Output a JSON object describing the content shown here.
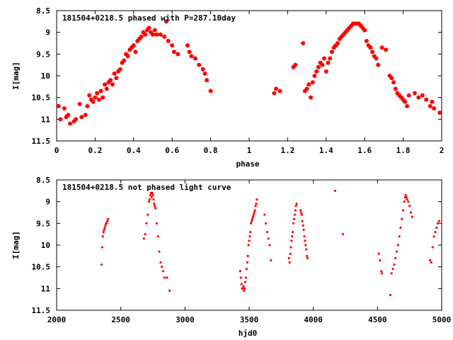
{
  "chart_data": [
    {
      "type": "scatter",
      "title": "181504+0218.5 phased with P=287.10day",
      "xlabel": "phase",
      "ylabel": "I[mag]",
      "xlim": [
        0,
        2
      ],
      "ylim": [
        11.5,
        8.5
      ],
      "y_inverted": true,
      "xticks": [
        "0",
        "0.2",
        "0.4",
        "0.6",
        "0.8",
        "1",
        "1.2",
        "1.4",
        "1.6",
        "1.8",
        "2"
      ],
      "yticks": [
        "8.5",
        "9",
        "9.5",
        "10",
        "10.5",
        "11",
        "11.5"
      ],
      "marker_color": "#ff0000",
      "series": [
        {
          "points": [
            [
              0.01,
              10.7
            ],
            [
              0.02,
              11.0
            ],
            [
              0.04,
              10.75
            ],
            [
              0.05,
              10.95
            ],
            [
              0.06,
              10.9
            ],
            [
              0.07,
              11.1
            ],
            [
              0.09,
              11.05
            ],
            [
              0.1,
              11.0
            ],
            [
              0.12,
              10.65
            ],
            [
              0.13,
              10.95
            ],
            [
              0.15,
              10.9
            ],
            [
              0.16,
              10.7
            ],
            [
              0.17,
              10.45
            ],
            [
              0.18,
              10.55
            ],
            [
              0.19,
              10.6
            ],
            [
              0.2,
              10.5
            ],
            [
              0.21,
              10.4
            ],
            [
              0.22,
              10.55
            ],
            [
              0.23,
              10.35
            ],
            [
              0.24,
              10.5
            ],
            [
              0.25,
              10.2
            ],
            [
              0.26,
              10.3
            ],
            [
              0.27,
              10.15
            ],
            [
              0.28,
              10.1
            ],
            [
              0.29,
              10.2
            ],
            [
              0.3,
              9.95
            ],
            [
              0.31,
              10.05
            ],
            [
              0.32,
              9.9
            ],
            [
              0.33,
              9.85
            ],
            [
              0.34,
              9.7
            ],
            [
              0.35,
              9.65
            ],
            [
              0.36,
              9.5
            ],
            [
              0.37,
              9.55
            ],
            [
              0.38,
              9.4
            ],
            [
              0.39,
              9.35
            ],
            [
              0.4,
              9.3
            ],
            [
              0.41,
              9.45
            ],
            [
              0.42,
              9.2
            ],
            [
              0.43,
              9.15
            ],
            [
              0.44,
              9.1
            ],
            [
              0.45,
              9.0
            ],
            [
              0.46,
              9.05
            ],
            [
              0.47,
              8.95
            ],
            [
              0.48,
              8.9
            ],
            [
              0.49,
              9.0
            ],
            [
              0.5,
              9.05
            ],
            [
              0.51,
              8.95
            ],
            [
              0.52,
              9.05
            ],
            [
              0.54,
              9.05
            ],
            [
              0.56,
              9.1
            ],
            [
              0.57,
              8.75
            ],
            [
              0.58,
              9.2
            ],
            [
              0.6,
              9.3
            ],
            [
              0.61,
              9.45
            ],
            [
              0.63,
              9.5
            ],
            [
              0.68,
              9.3
            ],
            [
              0.69,
              9.45
            ],
            [
              0.7,
              9.55
            ],
            [
              0.72,
              9.6
            ],
            [
              0.74,
              9.75
            ],
            [
              0.76,
              9.85
            ],
            [
              0.77,
              9.95
            ],
            [
              0.78,
              10.1
            ],
            [
              0.8,
              10.35
            ],
            [
              1.13,
              10.4
            ],
            [
              1.14,
              10.3
            ],
            [
              1.16,
              10.35
            ],
            [
              1.23,
              9.8
            ],
            [
              1.24,
              9.75
            ],
            [
              1.28,
              9.25
            ],
            [
              1.29,
              10.35
            ],
            [
              1.3,
              10.3
            ],
            [
              1.31,
              10.2
            ],
            [
              1.32,
              10.5
            ],
            [
              1.33,
              10.15
            ],
            [
              1.34,
              10.0
            ],
            [
              1.35,
              9.9
            ],
            [
              1.36,
              9.8
            ],
            [
              1.37,
              9.7
            ],
            [
              1.38,
              9.75
            ],
            [
              1.39,
              9.6
            ],
            [
              1.4,
              9.9
            ],
            [
              1.41,
              9.7
            ],
            [
              1.42,
              9.6
            ],
            [
              1.43,
              9.45
            ],
            [
              1.44,
              9.35
            ],
            [
              1.45,
              9.3
            ],
            [
              1.46,
              9.25
            ],
            [
              1.47,
              9.15
            ],
            [
              1.48,
              9.1
            ],
            [
              1.49,
              9.05
            ],
            [
              1.5,
              9.0
            ],
            [
              1.51,
              8.95
            ],
            [
              1.52,
              8.9
            ],
            [
              1.53,
              8.85
            ],
            [
              1.54,
              8.8
            ],
            [
              1.55,
              8.8
            ],
            [
              1.56,
              8.8
            ],
            [
              1.57,
              8.8
            ],
            [
              1.58,
              8.85
            ],
            [
              1.59,
              8.9
            ],
            [
              1.6,
              8.95
            ],
            [
              1.61,
              9.2
            ],
            [
              1.62,
              9.3
            ],
            [
              1.63,
              9.35
            ],
            [
              1.64,
              9.45
            ],
            [
              1.65,
              9.55
            ],
            [
              1.66,
              9.6
            ],
            [
              1.67,
              9.75
            ],
            [
              1.69,
              9.35
            ],
            [
              1.71,
              9.4
            ],
            [
              1.73,
              10.0
            ],
            [
              1.74,
              10.05
            ],
            [
              1.75,
              10.15
            ],
            [
              1.76,
              10.3
            ],
            [
              1.77,
              10.4
            ],
            [
              1.78,
              10.45
            ],
            [
              1.79,
              10.5
            ],
            [
              1.8,
              10.55
            ],
            [
              1.81,
              10.6
            ],
            [
              1.82,
              10.7
            ],
            [
              1.83,
              10.45
            ],
            [
              1.86,
              10.4
            ],
            [
              1.88,
              10.5
            ],
            [
              1.9,
              10.45
            ],
            [
              1.92,
              10.55
            ],
            [
              1.94,
              10.7
            ],
            [
              1.95,
              10.6
            ],
            [
              1.96,
              10.75
            ],
            [
              1.99,
              10.85
            ]
          ]
        }
      ]
    },
    {
      "type": "scatter",
      "title": "181504+0218.5 not phased light curve",
      "xlabel": "hjd0",
      "ylabel": "I[mag]",
      "xlim": [
        2000,
        5000
      ],
      "ylim": [
        11.5,
        8.5
      ],
      "y_inverted": true,
      "xticks": [
        "2000",
        "2500",
        "3000",
        "3500",
        "4000",
        "4500",
        "5000"
      ],
      "yticks": [
        "8.5",
        "9",
        "9.5",
        "10",
        "10.5",
        "11",
        "11.5"
      ],
      "marker_color": "#ff0000",
      "series": [
        {
          "points": [
            [
              2350,
              10.45
            ],
            [
              2355,
              10.05
            ],
            [
              2360,
              9.8
            ],
            [
              2365,
              9.7
            ],
            [
              2370,
              9.65
            ],
            [
              2375,
              9.6
            ],
            [
              2380,
              9.55
            ],
            [
              2385,
              9.5
            ],
            [
              2390,
              9.5
            ],
            [
              2395,
              9.45
            ],
            [
              2400,
              9.4
            ],
            [
              2680,
              9.85
            ],
            [
              2690,
              9.75
            ],
            [
              2700,
              9.5
            ],
            [
              2710,
              9.3
            ],
            [
              2720,
              9.0
            ],
            [
              2725,
              8.95
            ],
            [
              2730,
              8.85
            ],
            [
              2735,
              8.8
            ],
            [
              2740,
              8.9
            ],
            [
              2745,
              8.8
            ],
            [
              2750,
              8.85
            ],
            [
              2755,
              8.95
            ],
            [
              2760,
              9.05
            ],
            [
              2765,
              9.1
            ],
            [
              2770,
              9.15
            ],
            [
              2780,
              9.5
            ],
            [
              2790,
              9.8
            ],
            [
              2800,
              10.15
            ],
            [
              2810,
              10.4
            ],
            [
              2820,
              10.5
            ],
            [
              2830,
              10.6
            ],
            [
              2840,
              10.75
            ],
            [
              2860,
              10.75
            ],
            [
              2880,
              11.05
            ],
            [
              3430,
              10.6
            ],
            [
              3435,
              10.75
            ],
            [
              3440,
              10.9
            ],
            [
              3445,
              11.0
            ],
            [
              3450,
              11.0
            ],
            [
              3455,
              10.95
            ],
            [
              3460,
              11.05
            ],
            [
              3465,
              11.0
            ],
            [
              3470,
              10.85
            ],
            [
              3475,
              10.75
            ],
            [
              3480,
              10.55
            ],
            [
              3485,
              10.4
            ],
            [
              3490,
              10.25
            ],
            [
              3495,
              10.0
            ],
            [
              3500,
              9.9
            ],
            [
              3505,
              9.8
            ],
            [
              3510,
              9.7
            ],
            [
              3515,
              9.5
            ],
            [
              3520,
              9.45
            ],
            [
              3525,
              9.4
            ],
            [
              3530,
              9.35
            ],
            [
              3535,
              9.3
            ],
            [
              3540,
              9.25
            ],
            [
              3545,
              9.2
            ],
            [
              3550,
              9.1
            ],
            [
              3555,
              9.05
            ],
            [
              3560,
              8.95
            ],
            [
              3620,
              9.3
            ],
            [
              3630,
              9.5
            ],
            [
              3640,
              9.7
            ],
            [
              3650,
              9.85
            ],
            [
              3660,
              10.0
            ],
            [
              3670,
              10.35
            ],
            [
              3810,
              10.3
            ],
            [
              3815,
              10.4
            ],
            [
              3820,
              10.2
            ],
            [
              3825,
              10.05
            ],
            [
              3830,
              9.9
            ],
            [
              3835,
              9.8
            ],
            [
              3840,
              9.7
            ],
            [
              3845,
              9.5
            ],
            [
              3850,
              9.4
            ],
            [
              3855,
              9.3
            ],
            [
              3860,
              9.2
            ],
            [
              3865,
              9.1
            ],
            [
              3870,
              9.05
            ],
            [
              3900,
              9.2
            ],
            [
              3905,
              9.25
            ],
            [
              3910,
              9.3
            ],
            [
              3915,
              9.45
            ],
            [
              3920,
              9.55
            ],
            [
              3925,
              9.65
            ],
            [
              3930,
              9.8
            ],
            [
              3935,
              9.9
            ],
            [
              3940,
              10.0
            ],
            [
              3945,
              10.1
            ],
            [
              3950,
              10.25
            ],
            [
              3955,
              10.3
            ],
            [
              4170,
              8.75
            ],
            [
              4230,
              9.75
            ],
            [
              4510,
              10.2
            ],
            [
              4520,
              10.35
            ],
            [
              4530,
              10.6
            ],
            [
              4535,
              10.65
            ],
            [
              4600,
              11.15
            ],
            [
              4610,
              10.65
            ],
            [
              4620,
              10.55
            ],
            [
              4630,
              10.45
            ],
            [
              4640,
              10.3
            ],
            [
              4650,
              10.15
            ],
            [
              4660,
              10.0
            ],
            [
              4670,
              9.8
            ],
            [
              4680,
              9.6
            ],
            [
              4690,
              9.4
            ],
            [
              4700,
              9.2
            ],
            [
              4710,
              9.0
            ],
            [
              4715,
              8.9
            ],
            [
              4720,
              8.85
            ],
            [
              4725,
              8.9
            ],
            [
              4730,
              8.95
            ],
            [
              4740,
              9.0
            ],
            [
              4750,
              9.1
            ],
            [
              4760,
              9.25
            ],
            [
              4770,
              9.35
            ],
            [
              4910,
              10.35
            ],
            [
              4920,
              10.4
            ],
            [
              4930,
              10.05
            ],
            [
              4940,
              9.8
            ],
            [
              4950,
              9.7
            ],
            [
              4960,
              9.6
            ],
            [
              4970,
              9.5
            ],
            [
              4980,
              9.45
            ]
          ]
        }
      ]
    }
  ]
}
